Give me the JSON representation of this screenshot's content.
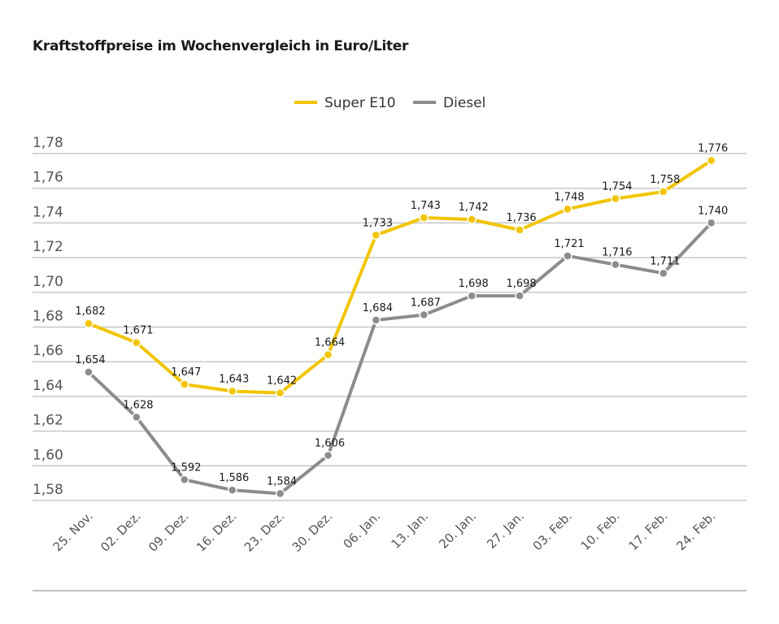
{
  "chart_data": {
    "type": "line",
    "title": "Kraftstoffpreise im Wochenvergleich in Euro/Liter",
    "xlabel": "",
    "ylabel": "",
    "categories": [
      "25. Nov.",
      "02. Dez.",
      "09. Dez.",
      "16. Dez.",
      "23. Dez.",
      "30. Dez.",
      "06. Jan.",
      "13. Jan.",
      "20. Jan.",
      "27. Jan.",
      "03. Feb.",
      "10. Feb.",
      "17. Feb.",
      "24. Feb."
    ],
    "series": [
      {
        "name": "Super E10",
        "color": "#f2c500",
        "values": [
          1.682,
          1.671,
          1.647,
          1.643,
          1.642,
          1.664,
          1.733,
          1.743,
          1.742,
          1.736,
          1.748,
          1.754,
          1.758,
          1.776
        ],
        "labels": [
          "1,682",
          "1,671",
          "1,647",
          "1,643",
          "1,642",
          "1,664",
          "1,733",
          "1,743",
          "1,742",
          "1,736",
          "1,748",
          "1,754",
          "1,758",
          "1,776"
        ]
      },
      {
        "name": "Diesel",
        "color": "#8c8c8c",
        "values": [
          1.654,
          1.628,
          1.592,
          1.586,
          1.584,
          1.606,
          1.684,
          1.687,
          1.698,
          1.698,
          1.721,
          1.716,
          1.711,
          1.74
        ],
        "labels": [
          "1,654",
          "1,628",
          "1,592",
          "1,586",
          "1,584",
          "1,606",
          "1,684",
          "1,687",
          "1,698",
          "1,698",
          "1,721",
          "1,716",
          "1,711",
          "1,740"
        ]
      }
    ],
    "ylim": [
      1.58,
      1.78
    ],
    "yticks": [
      1.58,
      1.6,
      1.62,
      1.64,
      1.66,
      1.68,
      1.7,
      1.72,
      1.74,
      1.76,
      1.78
    ],
    "ytick_labels": [
      "1,58",
      "1,60",
      "1,62",
      "1,64",
      "1,66",
      "1,68",
      "1,70",
      "1,72",
      "1,74",
      "1,76",
      "1,78"
    ],
    "grid": true,
    "legend": "top-center"
  }
}
